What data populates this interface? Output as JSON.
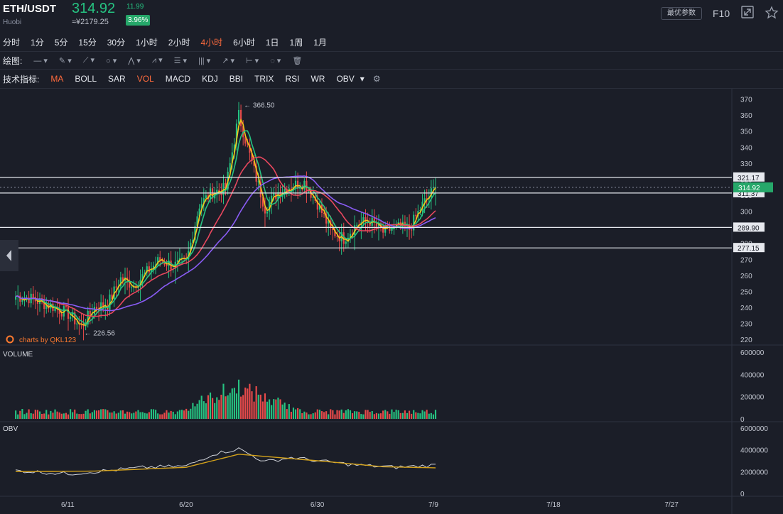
{
  "header": {
    "pair": "ETH/USDT",
    "exchange": "Huobi",
    "price": "314.92",
    "cny": "≈¥2179.25",
    "change": "11.99",
    "change_pct": "3.96%",
    "best_params": "最优参数",
    "f10": "F10",
    "fullscreen_icon": "fullscreen-icon",
    "star_icon": "star-icon"
  },
  "intervals": [
    "分时",
    "1分",
    "5分",
    "15分",
    "30分",
    "1小时",
    "2小时",
    "4小时",
    "6小时",
    "1日",
    "1周",
    "1月"
  ],
  "active_interval": "4小时",
  "draw_label": "绘图:",
  "draw_tools": [
    "line-tool-icon",
    "pen-tool-icon",
    "ray-tool-icon",
    "circle-tool-icon",
    "zigzag-tool-icon",
    "pattern-tool-icon",
    "fib-tool-icon",
    "channel-tool-icon",
    "arrow-tool-icon",
    "range-tool-icon",
    "note-tool-icon",
    "trash-icon"
  ],
  "indicator_label": "技术指标:",
  "indicators": [
    "MA",
    "BOLL",
    "SAR",
    "VOL",
    "MACD",
    "KDJ",
    "BBI",
    "TRIX",
    "RSI",
    "WR",
    "OBV"
  ],
  "indicators_active": [
    "MA",
    "VOL"
  ],
  "colors": {
    "up": "#26c281",
    "down": "#e84a4a",
    "ma5": "#f5c518",
    "ma10": "#26c281",
    "ma20": "#e8475e",
    "ma30": "#8a5cf5",
    "obv_line": "#cfd2d9",
    "obv_ma": "#d4a21a"
  },
  "watermark": "charts by QKL123",
  "chart_data": {
    "type": "candlestick",
    "price_axis": {
      "ticks": [
        370,
        360,
        350,
        340,
        330,
        320,
        310,
        300,
        290,
        280,
        270,
        260,
        250,
        240,
        230,
        220
      ],
      "range": [
        217,
        372
      ]
    },
    "horizontal_lines": [
      {
        "value": 321.17,
        "label": "321.17"
      },
      {
        "value": 311.37,
        "label": "311.37"
      },
      {
        "value": 289.9,
        "label": "289.90"
      },
      {
        "value": 277.15,
        "label": "277.15"
      }
    ],
    "last_price": {
      "value": 314.92,
      "label": "314.92"
    },
    "annotations": [
      {
        "label": "366.50",
        "value": 366.5,
        "date": "6/24"
      },
      {
        "label": "226.56",
        "value": 226.56,
        "date": "6/12"
      }
    ],
    "x_axis": {
      "labels": [
        "6/11",
        "6/20",
        "6/30",
        "7/9",
        "7/18",
        "7/27"
      ]
    },
    "close_path": [
      {
        "d": "6/7",
        "v": 247
      },
      {
        "d": "6/8",
        "v": 246
      },
      {
        "d": "6/9",
        "v": 243
      },
      {
        "d": "6/10",
        "v": 240
      },
      {
        "d": "6/11",
        "v": 236
      },
      {
        "d": "6/12",
        "v": 228
      },
      {
        "d": "6/13",
        "v": 240
      },
      {
        "d": "6/14",
        "v": 242
      },
      {
        "d": "6/15",
        "v": 258
      },
      {
        "d": "6/16",
        "v": 254
      },
      {
        "d": "6/17",
        "v": 262
      },
      {
        "d": "6/18",
        "v": 270
      },
      {
        "d": "6/19",
        "v": 266
      },
      {
        "d": "6/20",
        "v": 268
      },
      {
        "d": "6/21",
        "v": 304
      },
      {
        "d": "6/22",
        "v": 312
      },
      {
        "d": "6/23",
        "v": 314
      },
      {
        "d": "6/24",
        "v": 360
      },
      {
        "d": "6/25",
        "v": 330
      },
      {
        "d": "6/26",
        "v": 302
      },
      {
        "d": "6/27",
        "v": 312
      },
      {
        "d": "6/28",
        "v": 316
      },
      {
        "d": "6/29",
        "v": 318
      },
      {
        "d": "6/30",
        "v": 305
      },
      {
        "d": "7/1",
        "v": 288
      },
      {
        "d": "7/2",
        "v": 283
      },
      {
        "d": "7/3",
        "v": 292
      },
      {
        "d": "7/4",
        "v": 294
      },
      {
        "d": "7/5",
        "v": 287
      },
      {
        "d": "7/6",
        "v": 290
      },
      {
        "d": "7/7",
        "v": 289
      },
      {
        "d": "7/8",
        "v": 304
      },
      {
        "d": "7/9",
        "v": 314.92
      }
    ],
    "volume": {
      "title": "VOLUME",
      "ticks": [
        "600000",
        "400000",
        "200000",
        "0"
      ],
      "range": [
        0,
        600000
      ],
      "peak_value": 400000,
      "peak_date": "6/24"
    },
    "obv": {
      "title": "OBV",
      "ticks": [
        "6000000",
        "4000000",
        "2000000",
        "0"
      ],
      "range": [
        0,
        6000000
      ],
      "series": [
        {
          "d": "6/7",
          "v": 2100000
        },
        {
          "d": "6/11",
          "v": 1800000
        },
        {
          "d": "6/13",
          "v": 2000000
        },
        {
          "d": "6/17",
          "v": 2400000
        },
        {
          "d": "6/20",
          "v": 2500000
        },
        {
          "d": "6/22",
          "v": 3600000
        },
        {
          "d": "6/24",
          "v": 4100000
        },
        {
          "d": "6/26",
          "v": 2900000
        },
        {
          "d": "6/28",
          "v": 3300000
        },
        {
          "d": "6/30",
          "v": 3000000
        },
        {
          "d": "7/3",
          "v": 2600000
        },
        {
          "d": "7/6",
          "v": 2400000
        },
        {
          "d": "7/9",
          "v": 2600000
        }
      ],
      "ma": [
        {
          "d": "6/7",
          "v": 2000000
        },
        {
          "d": "6/13",
          "v": 2050000
        },
        {
          "d": "6/20",
          "v": 2400000
        },
        {
          "d": "6/24",
          "v": 3600000
        },
        {
          "d": "6/30",
          "v": 3000000
        },
        {
          "d": "7/5",
          "v": 2450000
        },
        {
          "d": "7/9",
          "v": 2350000
        }
      ]
    }
  }
}
